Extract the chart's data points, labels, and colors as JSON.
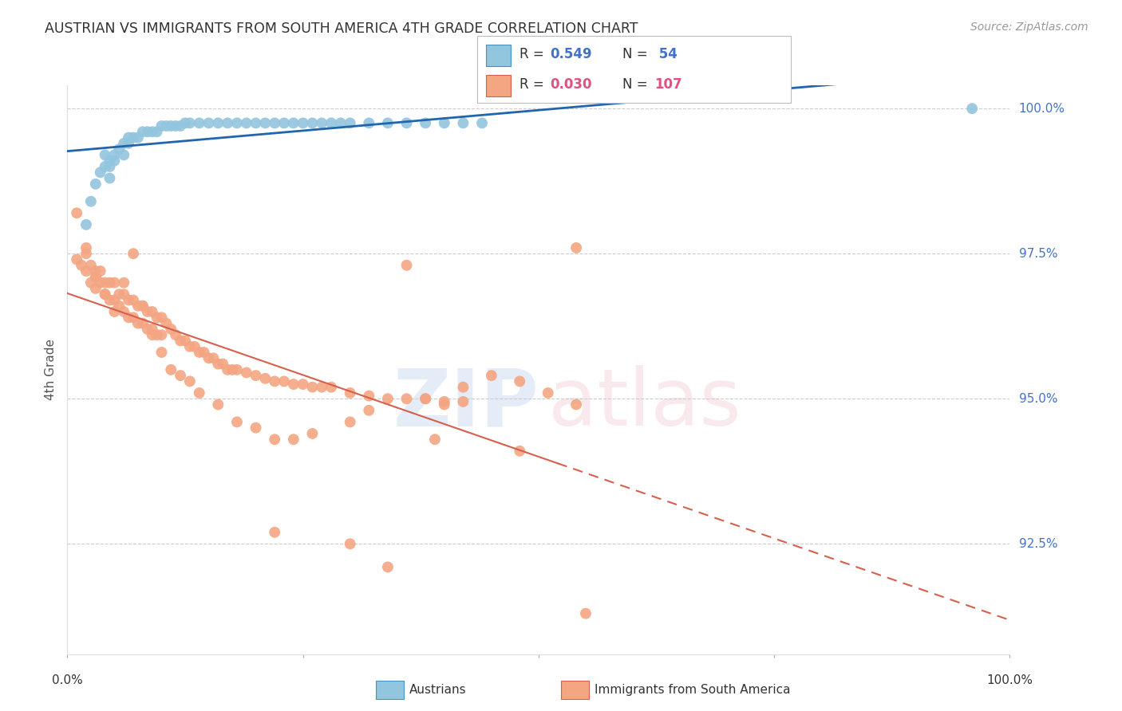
{
  "title": "AUSTRIAN VS IMMIGRANTS FROM SOUTH AMERICA 4TH GRADE CORRELATION CHART",
  "source": "Source: ZipAtlas.com",
  "ylabel": "4th Grade",
  "xlim": [
    0.0,
    1.0
  ],
  "ylim": [
    0.906,
    1.004
  ],
  "yticks": [
    0.925,
    0.95,
    0.975,
    1.0
  ],
  "right_axis_labels": [
    "92.5%",
    "95.0%",
    "97.5%",
    "100.0%"
  ],
  "blue_color": "#92c5de",
  "blue_edge_color": "#4393c3",
  "pink_color": "#f4a582",
  "pink_edge_color": "#d6604d",
  "blue_line_color": "#2166ac",
  "pink_line_color": "#d6604d",
  "blue_scatter_x": [
    0.02,
    0.025,
    0.03,
    0.035,
    0.04,
    0.04,
    0.045,
    0.045,
    0.05,
    0.05,
    0.055,
    0.06,
    0.06,
    0.065,
    0.065,
    0.07,
    0.075,
    0.08,
    0.085,
    0.09,
    0.095,
    0.1,
    0.105,
    0.11,
    0.115,
    0.12,
    0.125,
    0.13,
    0.14,
    0.15,
    0.16,
    0.17,
    0.18,
    0.19,
    0.2,
    0.21,
    0.22,
    0.23,
    0.24,
    0.25,
    0.26,
    0.27,
    0.28,
    0.29,
    0.3,
    0.32,
    0.34,
    0.36,
    0.38,
    0.4,
    0.42,
    0.44,
    0.045,
    0.96
  ],
  "blue_scatter_y": [
    0.98,
    0.984,
    0.987,
    0.989,
    0.99,
    0.992,
    0.99,
    0.991,
    0.991,
    0.992,
    0.993,
    0.992,
    0.994,
    0.994,
    0.995,
    0.995,
    0.995,
    0.996,
    0.996,
    0.996,
    0.996,
    0.997,
    0.997,
    0.997,
    0.997,
    0.997,
    0.9975,
    0.9975,
    0.9975,
    0.9975,
    0.9975,
    0.9975,
    0.9975,
    0.9975,
    0.9975,
    0.9975,
    0.9975,
    0.9975,
    0.9975,
    0.9975,
    0.9975,
    0.9975,
    0.9975,
    0.9975,
    0.9975,
    0.9975,
    0.9975,
    0.9975,
    0.9975,
    0.9975,
    0.9975,
    0.9975,
    0.988,
    1.0
  ],
  "pink_scatter_x": [
    0.01,
    0.015,
    0.02,
    0.02,
    0.025,
    0.025,
    0.03,
    0.03,
    0.03,
    0.035,
    0.035,
    0.04,
    0.04,
    0.045,
    0.045,
    0.05,
    0.05,
    0.055,
    0.055,
    0.06,
    0.06,
    0.065,
    0.065,
    0.07,
    0.07,
    0.075,
    0.075,
    0.08,
    0.08,
    0.085,
    0.085,
    0.09,
    0.09,
    0.095,
    0.095,
    0.1,
    0.1,
    0.105,
    0.11,
    0.115,
    0.12,
    0.125,
    0.13,
    0.135,
    0.14,
    0.145,
    0.15,
    0.155,
    0.16,
    0.165,
    0.17,
    0.175,
    0.18,
    0.19,
    0.2,
    0.21,
    0.22,
    0.23,
    0.24,
    0.25,
    0.26,
    0.27,
    0.28,
    0.3,
    0.32,
    0.34,
    0.36,
    0.38,
    0.4,
    0.42,
    0.01,
    0.02,
    0.03,
    0.04,
    0.05,
    0.06,
    0.07,
    0.08,
    0.09,
    0.1,
    0.11,
    0.12,
    0.13,
    0.14,
    0.16,
    0.18,
    0.2,
    0.22,
    0.24,
    0.26,
    0.3,
    0.32,
    0.38,
    0.42,
    0.45,
    0.48,
    0.51,
    0.54,
    0.36,
    0.54,
    0.22,
    0.3,
    0.34,
    0.39,
    0.4,
    0.48,
    0.55
  ],
  "pink_scatter_y": [
    0.974,
    0.973,
    0.975,
    0.972,
    0.973,
    0.97,
    0.972,
    0.971,
    0.969,
    0.972,
    0.97,
    0.97,
    0.968,
    0.97,
    0.967,
    0.97,
    0.967,
    0.968,
    0.966,
    0.968,
    0.965,
    0.967,
    0.964,
    0.967,
    0.964,
    0.966,
    0.963,
    0.966,
    0.963,
    0.965,
    0.962,
    0.965,
    0.961,
    0.964,
    0.961,
    0.964,
    0.961,
    0.963,
    0.962,
    0.961,
    0.96,
    0.96,
    0.959,
    0.959,
    0.958,
    0.958,
    0.957,
    0.957,
    0.956,
    0.956,
    0.955,
    0.955,
    0.955,
    0.9545,
    0.954,
    0.9535,
    0.953,
    0.953,
    0.9525,
    0.9525,
    0.952,
    0.952,
    0.952,
    0.951,
    0.9505,
    0.95,
    0.95,
    0.95,
    0.9495,
    0.9495,
    0.982,
    0.976,
    0.971,
    0.968,
    0.965,
    0.97,
    0.975,
    0.966,
    0.962,
    0.958,
    0.955,
    0.954,
    0.953,
    0.951,
    0.949,
    0.946,
    0.945,
    0.943,
    0.943,
    0.944,
    0.946,
    0.948,
    0.95,
    0.952,
    0.954,
    0.953,
    0.951,
    0.949,
    0.973,
    0.976,
    0.927,
    0.925,
    0.921,
    0.943,
    0.949,
    0.941,
    0.913
  ]
}
